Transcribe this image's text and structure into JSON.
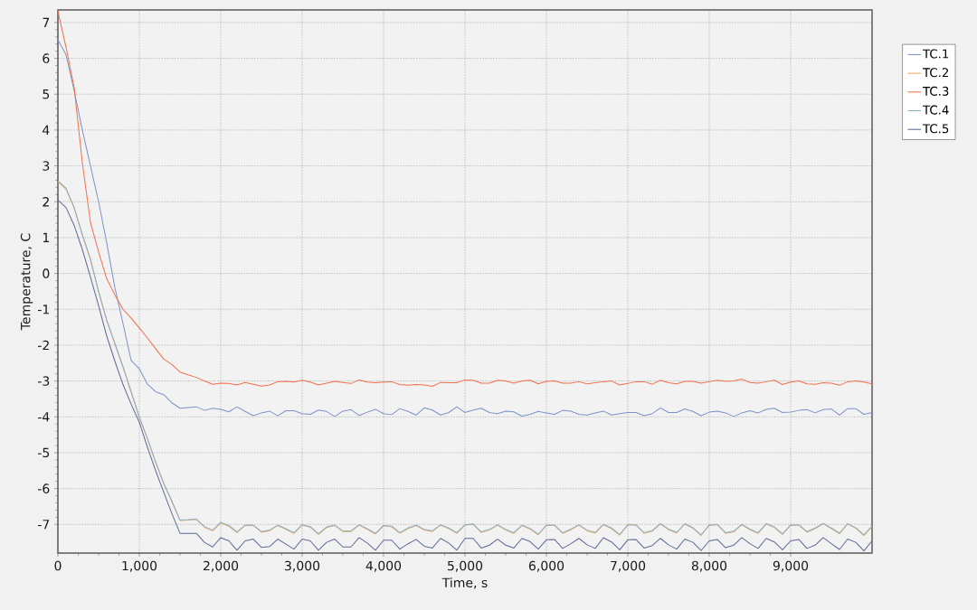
{
  "chart_data": {
    "type": "line",
    "xlabel": "Time, s",
    "ylabel": "Temperature, C",
    "x": [
      0,
      100,
      200,
      300,
      400,
      500,
      600,
      700,
      800,
      900,
      1000,
      1100,
      1200,
      1300,
      1400,
      1500,
      1600,
      1700,
      1800,
      1900,
      2000,
      2100,
      2200,
      2300,
      2400,
      2500,
      2600,
      2700,
      2800,
      2900,
      3000,
      3100,
      3200,
      3300,
      3400,
      3500,
      3600,
      3700,
      3800,
      3900,
      4000,
      4100,
      4200,
      4300,
      4400,
      4500,
      4600,
      4700,
      4800,
      4900,
      5000,
      5100,
      5200,
      5300,
      5400,
      5500,
      5600,
      5700,
      5800,
      5900,
      6000,
      6100,
      6200,
      6300,
      6400,
      6500,
      6600,
      6700,
      6800,
      6900,
      7000,
      7100,
      7200,
      7300,
      7400,
      7500,
      7600,
      7700,
      7800,
      7900,
      8000,
      8100,
      8200,
      8300,
      8400,
      8500,
      8600,
      8700,
      8800,
      8900,
      9000,
      9100,
      9200,
      9300,
      9400,
      9500,
      9600,
      9700,
      9800,
      9900,
      10000
    ],
    "series": [
      {
        "name": "TC.1",
        "color": "#7b93c6",
        "values": [
          6.52,
          6.1,
          5.1,
          4.0,
          3.0,
          2.0,
          0.85,
          -0.4,
          -1.4,
          -2.43,
          -2.66,
          -3.09,
          -3.3,
          -3.38,
          -3.61,
          -3.76,
          -3.74,
          -3.72,
          -3.82,
          -3.76,
          -3.79,
          -3.86,
          -3.72,
          -3.85,
          -3.97,
          -3.89,
          -3.84,
          -3.97,
          -3.83,
          -3.83,
          -3.91,
          -3.93,
          -3.81,
          -3.85,
          -3.99,
          -3.84,
          -3.8,
          -3.96,
          -3.87,
          -3.79,
          -3.91,
          -3.94,
          -3.77,
          -3.85,
          -3.95,
          -3.75,
          -3.81,
          -3.95,
          -3.88,
          -3.72,
          -3.88,
          -3.81,
          -3.76,
          -3.88,
          -3.91,
          -3.84,
          -3.86,
          -3.98,
          -3.93,
          -3.85,
          -3.89,
          -3.93,
          -3.82,
          -3.84,
          -3.93,
          -3.95,
          -3.89,
          -3.84,
          -3.95,
          -3.91,
          -3.88,
          -3.88,
          -3.97,
          -3.91,
          -3.75,
          -3.88,
          -3.88,
          -3.78,
          -3.85,
          -3.97,
          -3.87,
          -3.84,
          -3.89,
          -3.99,
          -3.89,
          -3.83,
          -3.89,
          -3.79,
          -3.76,
          -3.88,
          -3.87,
          -3.82,
          -3.8,
          -3.89,
          -3.8,
          -3.78,
          -3.95,
          -3.77,
          -3.77,
          -3.93,
          -3.88
        ]
      },
      {
        "name": "TC.2",
        "color": "#f2a65c",
        "values": [
          2.56,
          2.35,
          1.82,
          1.07,
          0.38,
          -0.52,
          -1.32,
          -1.97,
          -2.62,
          -3.32,
          -4.02,
          -4.62,
          -5.27,
          -5.87,
          -6.37,
          -6.89,
          -6.88,
          -6.86,
          -7.08,
          -7.18,
          -6.96,
          -7.05,
          -7.23,
          -7.03,
          -7.03,
          -7.22,
          -7.18,
          -7.03,
          -7.14,
          -7.25,
          -7.02,
          -7.08,
          -7.28,
          -7.09,
          -7.03,
          -7.2,
          -7.2,
          -7.02,
          -7.14,
          -7.27,
          -7.04,
          -7.07,
          -7.25,
          -7.12,
          -7.03,
          -7.16,
          -7.2,
          -7.02,
          -7.12,
          -7.25,
          -7.02,
          -7.0,
          -7.23,
          -7.16,
          -7.02,
          -7.16,
          -7.25,
          -7.03,
          -7.13,
          -7.29,
          -7.03,
          -7.03,
          -7.25,
          -7.15,
          -7.02,
          -7.18,
          -7.24,
          -7.01,
          -7.12,
          -7.3,
          -7.0,
          -7.01,
          -7.25,
          -7.19,
          -6.99,
          -7.15,
          -7.24,
          -6.99,
          -7.11,
          -7.31,
          -7.01,
          -7.01,
          -7.25,
          -7.21,
          -7.01,
          -7.15,
          -7.25,
          -6.99,
          -7.09,
          -7.28,
          -7.01,
          -7.02,
          -7.22,
          -7.12,
          -6.98,
          -7.12,
          -7.26,
          -6.99,
          -7.11,
          -7.31,
          -7.06
        ]
      },
      {
        "name": "TC.3",
        "color": "#f0704c",
        "values": [
          7.32,
          6.31,
          5.18,
          3.09,
          1.42,
          0.6,
          -0.15,
          -0.6,
          -1.0,
          -1.25,
          -1.52,
          -1.8,
          -2.1,
          -2.39,
          -2.54,
          -2.75,
          -2.83,
          -2.9,
          -3.0,
          -3.09,
          -3.06,
          -3.07,
          -3.11,
          -3.04,
          -3.09,
          -3.14,
          -3.11,
          -3.02,
          -3.01,
          -3.03,
          -2.98,
          -3.03,
          -3.11,
          -3.06,
          -3.01,
          -3.04,
          -3.07,
          -2.97,
          -3.03,
          -3.05,
          -3.03,
          -3.02,
          -3.1,
          -3.12,
          -3.1,
          -3.11,
          -3.15,
          -3.04,
          -3.05,
          -3.05,
          -2.97,
          -2.98,
          -3.06,
          -3.06,
          -2.98,
          -3.0,
          -3.06,
          -3.0,
          -2.98,
          -3.08,
          -3.01,
          -3.0,
          -3.06,
          -3.06,
          -3.02,
          -3.08,
          -3.05,
          -3.02,
          -3.0,
          -3.11,
          -3.07,
          -3.02,
          -3.02,
          -3.09,
          -2.98,
          -3.05,
          -3.08,
          -3.01,
          -3.01,
          -3.06,
          -3.02,
          -2.98,
          -3.01,
          -3.0,
          -2.95,
          -3.04,
          -3.06,
          -3.02,
          -2.98,
          -3.1,
          -3.03,
          -3.0,
          -3.08,
          -3.09,
          -3.05,
          -3.06,
          -3.12,
          -3.02,
          -3.0,
          -3.03,
          -3.08
        ]
      },
      {
        "name": "TC.4",
        "color": "#86b3c8",
        "values": [
          2.59,
          2.38,
          1.84,
          1.09,
          0.4,
          -0.5,
          -1.3,
          -1.95,
          -2.6,
          -3.3,
          -4.0,
          -4.6,
          -5.25,
          -5.85,
          -6.35,
          -6.88,
          -6.87,
          -6.85,
          -7.06,
          -7.16,
          -6.94,
          -7.03,
          -7.21,
          -7.02,
          -7.02,
          -7.2,
          -7.16,
          -7.02,
          -7.12,
          -7.23,
          -7.01,
          -7.06,
          -7.26,
          -7.07,
          -7.02,
          -7.18,
          -7.18,
          -7.01,
          -7.12,
          -7.25,
          -7.03,
          -7.05,
          -7.23,
          -7.1,
          -7.02,
          -7.14,
          -7.18,
          -7.01,
          -7.1,
          -7.23,
          -7.01,
          -6.99,
          -7.21,
          -7.14,
          -7.01,
          -7.14,
          -7.23,
          -7.02,
          -7.11,
          -7.27,
          -7.02,
          -7.02,
          -7.23,
          -7.13,
          -7.01,
          -7.16,
          -7.22,
          -7.0,
          -7.1,
          -7.28,
          -7.02,
          -7.02,
          -7.23,
          -7.17,
          -6.98,
          -7.13,
          -7.22,
          -6.98,
          -7.09,
          -7.29,
          -7.03,
          -7.0,
          -7.23,
          -7.19,
          -7.0,
          -7.13,
          -7.23,
          -6.98,
          -7.07,
          -7.26,
          -7.03,
          -7.01,
          -7.2,
          -7.1,
          -6.97,
          -7.1,
          -7.24,
          -6.98,
          -7.09,
          -7.29,
          -7.04
        ]
      },
      {
        "name": "TC.5",
        "color": "#5c6a96",
        "values": [
          2.05,
          1.84,
          1.34,
          0.67,
          -0.1,
          -0.9,
          -1.75,
          -2.45,
          -3.1,
          -3.65,
          -4.15,
          -4.85,
          -5.5,
          -6.1,
          -6.7,
          -7.25,
          -7.25,
          -7.25,
          -7.5,
          -7.63,
          -7.37,
          -7.46,
          -7.72,
          -7.46,
          -7.41,
          -7.64,
          -7.62,
          -7.41,
          -7.55,
          -7.69,
          -7.41,
          -7.46,
          -7.72,
          -7.5,
          -7.41,
          -7.63,
          -7.63,
          -7.37,
          -7.52,
          -7.72,
          -7.44,
          -7.44,
          -7.69,
          -7.54,
          -7.42,
          -7.61,
          -7.66,
          -7.39,
          -7.52,
          -7.72,
          -7.39,
          -7.39,
          -7.66,
          -7.58,
          -7.41,
          -7.58,
          -7.66,
          -7.39,
          -7.48,
          -7.69,
          -7.43,
          -7.42,
          -7.67,
          -7.54,
          -7.39,
          -7.57,
          -7.67,
          -7.37,
          -7.49,
          -7.71,
          -7.43,
          -7.42,
          -7.66,
          -7.59,
          -7.39,
          -7.57,
          -7.69,
          -7.41,
          -7.5,
          -7.73,
          -7.46,
          -7.42,
          -7.65,
          -7.58,
          -7.37,
          -7.54,
          -7.67,
          -7.39,
          -7.49,
          -7.71,
          -7.46,
          -7.42,
          -7.67,
          -7.58,
          -7.37,
          -7.54,
          -7.7,
          -7.41,
          -7.5,
          -7.74,
          -7.46
        ]
      }
    ],
    "xlim": [
      0,
      10000
    ],
    "xticks": [
      0,
      {
        "value": 1000,
        "label": "1,000"
      },
      {
        "value": 2000,
        "label": "2,000"
      },
      {
        "value": 3000,
        "label": "3,000"
      },
      {
        "value": 4000,
        "label": "4,000"
      },
      {
        "value": 5000,
        "label": "5,000"
      },
      {
        "value": 6000,
        "label": "6,000"
      },
      {
        "value": 7000,
        "label": "7,000"
      },
      {
        "value": 8000,
        "label": "8,000"
      },
      {
        "value": 9000,
        "label": "9,000"
      }
    ],
    "ylim": [
      -7.8,
      7.35
    ],
    "yticks": [
      -7,
      -6,
      -5,
      -4,
      -3,
      -2,
      -1,
      0,
      1,
      2,
      3,
      4,
      5,
      6,
      7
    ],
    "grid": true,
    "legend": "top right"
  }
}
